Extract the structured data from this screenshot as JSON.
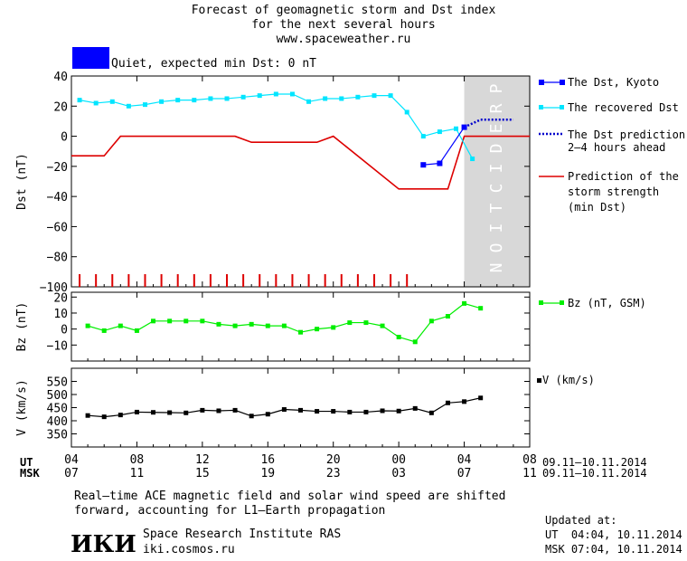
{
  "header": {
    "title_lines": [
      "Forecast of geomagnetic storm and Dst index",
      "for the next several hours",
      "www.spaceweather.ru"
    ],
    "status_color": "#0000ff",
    "status_text": "Quiet, expected min Dst: 0 nT",
    "prediction_label": "PREDICTION"
  },
  "legend": {
    "dst_kyoto": "The Dst, Kyoto",
    "recovered": "The recovered Dst",
    "prediction_lines": [
      "The Dst prediction",
      "2–4 hours ahead"
    ],
    "storm_lines": [
      "Prediction of the",
      "storm strength",
      "(min Dst)"
    ],
    "bz": "Bz (nT, GSM)",
    "v": "V (km/s)"
  },
  "axes": {
    "ut_label": "UT",
    "msk_label": "MSK",
    "ut_ticks": [
      "04",
      "08",
      "12",
      "16",
      "20",
      "00",
      "04",
      "08"
    ],
    "msk_ticks": [
      "07",
      "11",
      "15",
      "19",
      "23",
      "03",
      "07",
      "11"
    ],
    "date_range_ut": "09.11–10.11.2014",
    "date_range_msk": "09.11–10.11.2014"
  },
  "footer": {
    "note_lines": [
      "Real–time ACE magnetic field and solar wind speed are shifted",
      "forward, accounting for L1–Earth propagation"
    ],
    "logo_text": "ИКИ",
    "institute": "Space Research Institute RAS",
    "website": "iki.cosmos.ru",
    "updated_label": "Updated at:",
    "updated_ut": "UT  04:04, 10.11.2014",
    "updated_msk": "MSK 07:04, 10.11.2014"
  },
  "colors": {
    "dst_kyoto": "#0000ff",
    "recovered": "#00e5ff",
    "prediction": "#0000cc",
    "storm": "#dd0000",
    "bz": "#00ee00",
    "v": "#000000",
    "prediction_zone": "#d8d8d8"
  },
  "chart_data": [
    {
      "type": "line",
      "ylabel": "Dst (nT)",
      "xlim_hours_since_04UT_0911": [
        0,
        28
      ],
      "ylim": [
        -100,
        40
      ],
      "yticks": [
        40,
        20,
        0,
        -20,
        -40,
        -60,
        -80,
        -100
      ],
      "prediction_zone_hours": [
        24,
        28
      ],
      "series": [
        {
          "name": "The Dst, Kyoto",
          "x": [
            21.5,
            22.5,
            24
          ],
          "y": [
            -19,
            -18,
            6
          ]
        },
        {
          "name": "The recovered Dst",
          "x": [
            0.5,
            1.5,
            2.5,
            3.5,
            4.5,
            5.5,
            6.5,
            7.5,
            8.5,
            9.5,
            10.5,
            11.5,
            12.5,
            13.5,
            14.5,
            15.5,
            16.5,
            17.5,
            18.5,
            19.5,
            20.5,
            21.5,
            22.5,
            23.5,
            24.5
          ],
          "y": [
            24,
            22,
            23,
            20,
            21,
            23,
            24,
            24,
            25,
            25,
            26,
            27,
            28,
            28,
            23,
            25,
            25,
            26,
            27,
            27,
            16,
            0,
            3,
            5,
            -15
          ]
        },
        {
          "name": "The Dst prediction 2–4 hours ahead",
          "x": [
            24,
            25,
            26,
            27
          ],
          "y": [
            6,
            11,
            11,
            11
          ]
        },
        {
          "name": "Prediction of the storm strength (min Dst)",
          "x": [
            0,
            2,
            3,
            10,
            11,
            15,
            16,
            20,
            23,
            24,
            28
          ],
          "y": [
            -13,
            -13,
            0,
            0,
            -4,
            -4,
            0,
            -35,
            -35,
            0,
            0
          ]
        }
      ],
      "event_ticks_hours": [
        0.5,
        1.5,
        2.5,
        3.5,
        4.5,
        5.5,
        6.5,
        7.5,
        8.5,
        9.5,
        10.5,
        11.5,
        12.5,
        13.5,
        14.5,
        15.5,
        16.5,
        17.5,
        18.5,
        19.5,
        20.5
      ]
    },
    {
      "type": "line",
      "ylabel": "Bz (nT)",
      "ylim": [
        -20,
        23
      ],
      "yticks": [
        20,
        10,
        0,
        -10
      ],
      "series": [
        {
          "name": "Bz (nT, GSM)",
          "x": [
            1,
            2,
            3,
            4,
            5,
            6,
            7,
            8,
            9,
            10,
            11,
            12,
            13,
            14,
            15,
            16,
            17,
            18,
            19,
            20,
            21,
            22,
            23,
            24,
            25
          ],
          "y": [
            2,
            -1,
            2,
            -1,
            5,
            5,
            5,
            5,
            3,
            2,
            3,
            2,
            2,
            -2,
            0,
            1,
            4,
            4,
            2,
            -5,
            -8,
            5,
            8,
            16,
            13
          ]
        }
      ]
    },
    {
      "type": "line",
      "ylabel": "V (km/s)",
      "ylim": [
        300,
        600
      ],
      "yticks": [
        550,
        500,
        450,
        400,
        350
      ],
      "series": [
        {
          "name": "V (km/s)",
          "x": [
            1,
            2,
            3,
            4,
            5,
            6,
            7,
            8,
            9,
            10,
            11,
            12,
            13,
            14,
            15,
            16,
            17,
            18,
            19,
            20,
            21,
            22,
            23,
            24,
            25
          ],
          "y": [
            420,
            415,
            422,
            433,
            432,
            431,
            430,
            440,
            438,
            440,
            418,
            425,
            443,
            440,
            436,
            436,
            433,
            433,
            438,
            437,
            447,
            430,
            468,
            473,
            487
          ]
        }
      ]
    }
  ]
}
